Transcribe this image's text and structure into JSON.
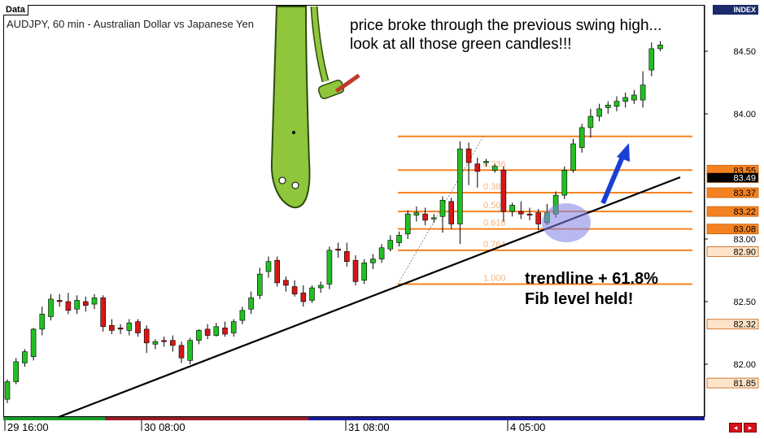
{
  "chart_data": {
    "type": "candlestick",
    "panel_tab": "Data",
    "instrument_label": "AUDJPY, 60 min - Australian Dollar vs Japanese Yen",
    "axis_header": "INDEX",
    "y_ticks": [
      "84.50",
      "84.00",
      "83.00",
      "82.50",
      "82.00"
    ],
    "price_boxes": [
      {
        "label": "83.55",
        "value": 83.55,
        "style": "orange"
      },
      {
        "label": "83.49",
        "value": 83.49,
        "style": "black"
      },
      {
        "label": "83.37",
        "value": 83.37,
        "style": "orange"
      },
      {
        "label": "83.22",
        "value": 83.22,
        "style": "orange"
      },
      {
        "label": "83.08",
        "value": 83.08,
        "style": "orange"
      },
      {
        "label": "82.90",
        "value": 82.9,
        "style": "light"
      },
      {
        "label": "82.32",
        "value": 82.32,
        "style": "light"
      },
      {
        "label": "81.85",
        "value": 81.85,
        "style": "light"
      }
    ],
    "x_labels": [
      "29 16:00",
      "30 08:00",
      "31 08:00",
      "4 05:00"
    ],
    "ylim": [
      81.66,
      84.81
    ],
    "candles": [
      [
        81.72,
        81.86,
        81.69,
        81.88
      ],
      [
        81.86,
        82.02,
        81.84,
        82.05
      ],
      [
        82.01,
        82.1,
        81.98,
        82.12
      ],
      [
        82.06,
        82.28,
        82.03,
        82.29
      ],
      [
        82.28,
        82.4,
        82.23,
        82.46
      ],
      [
        82.38,
        82.52,
        82.35,
        82.56
      ],
      [
        82.51,
        82.5,
        82.46,
        82.56
      ],
      [
        82.5,
        82.43,
        82.4,
        82.57
      ],
      [
        82.44,
        82.51,
        82.4,
        82.55
      ],
      [
        82.5,
        82.47,
        82.42,
        82.54
      ],
      [
        82.48,
        82.53,
        82.44,
        82.56
      ],
      [
        82.53,
        82.3,
        82.26,
        82.55
      ],
      [
        82.31,
        82.27,
        82.24,
        82.36
      ],
      [
        82.29,
        82.28,
        82.24,
        82.32
      ],
      [
        82.27,
        82.33,
        82.23,
        82.36
      ],
      [
        82.34,
        82.25,
        82.22,
        82.36
      ],
      [
        82.28,
        82.17,
        82.09,
        82.31
      ],
      [
        82.16,
        82.18,
        82.12,
        82.2
      ],
      [
        82.19,
        82.18,
        82.14,
        82.22
      ],
      [
        82.19,
        82.15,
        82.1,
        82.23
      ],
      [
        82.15,
        82.05,
        82.01,
        82.18
      ],
      [
        82.03,
        82.19,
        82.0,
        82.21
      ],
      [
        82.19,
        82.27,
        82.16,
        82.28
      ],
      [
        82.28,
        82.23,
        82.2,
        82.32
      ],
      [
        82.23,
        82.3,
        82.22,
        82.33
      ],
      [
        82.29,
        82.24,
        82.22,
        82.34
      ],
      [
        82.25,
        82.34,
        82.22,
        82.36
      ],
      [
        82.35,
        82.43,
        82.32,
        82.46
      ],
      [
        82.44,
        82.53,
        82.4,
        82.58
      ],
      [
        82.55,
        82.72,
        82.52,
        82.77
      ],
      [
        82.74,
        82.82,
        82.69,
        82.86
      ],
      [
        82.83,
        82.65,
        82.62,
        82.86
      ],
      [
        82.67,
        82.63,
        82.58,
        82.7
      ],
      [
        82.62,
        82.56,
        82.54,
        82.67
      ],
      [
        82.57,
        82.5,
        82.46,
        82.63
      ],
      [
        82.51,
        82.61,
        82.49,
        82.63
      ],
      [
        82.61,
        82.63,
        82.57,
        82.66
      ],
      [
        82.64,
        82.91,
        82.6,
        82.94
      ],
      [
        82.92,
        82.91,
        82.85,
        82.97
      ],
      [
        82.9,
        82.82,
        82.78,
        82.97
      ],
      [
        82.83,
        82.66,
        82.63,
        82.87
      ],
      [
        82.67,
        82.81,
        82.64,
        82.84
      ],
      [
        82.81,
        82.84,
        82.76,
        82.88
      ],
      [
        82.84,
        82.93,
        82.81,
        82.96
      ],
      [
        82.92,
        82.99,
        82.9,
        83.03
      ],
      [
        82.97,
        83.03,
        82.94,
        83.06
      ],
      [
        83.04,
        83.2,
        83.0,
        83.23
      ],
      [
        83.19,
        83.21,
        83.14,
        83.26
      ],
      [
        83.2,
        83.15,
        83.11,
        83.25
      ],
      [
        83.16,
        83.17,
        83.13,
        83.2
      ],
      [
        83.18,
        83.31,
        83.05,
        83.34
      ],
      [
        83.3,
        83.12,
        83.08,
        83.33
      ],
      [
        83.12,
        83.72,
        82.96,
        83.78
      ],
      [
        83.72,
        83.61,
        83.43,
        83.77
      ],
      [
        83.6,
        83.54,
        83.41,
        83.65
      ],
      [
        83.61,
        83.62,
        83.58,
        83.64
      ],
      [
        83.55,
        83.58,
        83.53,
        83.6
      ],
      [
        83.55,
        83.22,
        83.14,
        83.58
      ],
      [
        83.22,
        83.27,
        83.18,
        83.29
      ],
      [
        83.22,
        83.2,
        83.16,
        83.3
      ],
      [
        83.2,
        83.19,
        83.15,
        83.25
      ],
      [
        83.21,
        83.12,
        83.07,
        83.24
      ],
      [
        83.13,
        83.21,
        83.11,
        83.28
      ],
      [
        83.2,
        83.35,
        83.17,
        83.38
      ],
      [
        83.35,
        83.55,
        83.32,
        83.58
      ],
      [
        83.55,
        83.76,
        83.53,
        83.8
      ],
      [
        83.73,
        83.89,
        83.69,
        83.92
      ],
      [
        83.89,
        83.98,
        83.81,
        84.04
      ],
      [
        83.98,
        84.04,
        83.94,
        84.08
      ],
      [
        84.05,
        84.07,
        84.0,
        84.1
      ],
      [
        84.06,
        84.1,
        84.02,
        84.14
      ],
      [
        84.1,
        84.13,
        84.05,
        84.17
      ],
      [
        84.11,
        84.15,
        84.08,
        84.19
      ],
      [
        84.11,
        84.23,
        84.05,
        84.34
      ],
      [
        84.35,
        84.52,
        84.3,
        84.57
      ],
      [
        84.52,
        84.55,
        84.5,
        84.58
      ]
    ],
    "fib_levels": [
      {
        "label": "",
        "value": 83.82
      },
      {
        "label": "0.236",
        "value": 83.55
      },
      {
        "label": "0.382",
        "value": 83.37
      },
      {
        "label": "0.500",
        "value": 83.22
      },
      {
        "label": "0.618",
        "value": 83.08
      },
      {
        "label": "0.764",
        "value": 82.91
      },
      {
        "label": "1.000",
        "value": 82.64
      }
    ],
    "trendline": [
      [
        82.0,
        82.13,
        82.64,
        83.55
      ],
      [
        81.66,
        82.64,
        82.64,
        83.38
      ]
    ],
    "annotations": {
      "top_note_line1": "price broke through the previous swing high...",
      "top_note_line2": "look at all those green candles!!!",
      "bottom_note_line1": "trendline + 61.8%",
      "bottom_note_line2": "Fib level held!"
    },
    "colors": {
      "up": "#22c022",
      "down": "#d81616",
      "wick": "#000000",
      "fib": "#f58220",
      "trend": "#000000",
      "circle": "#7f7fe8",
      "arrow": "#1a3fd6",
      "index_bg": "#1b2a6b",
      "time_bar_1": "#1a9c2a",
      "time_bar_2": "#9c1a2a",
      "time_bar_3": "#1a1a9c"
    }
  }
}
